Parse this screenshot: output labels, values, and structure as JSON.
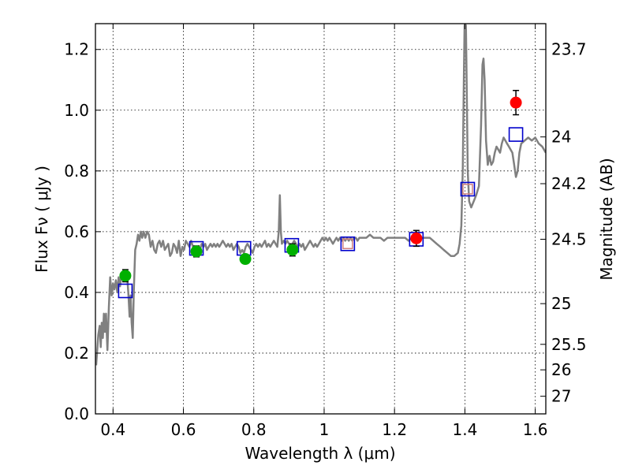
{
  "chart_data": {
    "type": "line",
    "xlabel": "Wavelength  λ (μm)",
    "ylabel": "Flux  Fν  ( μJy )",
    "y2label": "Magnitude (AB)",
    "xlim": [
      0.35,
      1.63
    ],
    "ylim": [
      0.0,
      1.285
    ],
    "grid": true,
    "x_ticks": [
      0.4,
      0.6,
      0.8,
      1.0,
      1.2,
      1.4,
      1.6
    ],
    "x_tick_labels": [
      "0.4",
      "0.6",
      "0.8",
      "1",
      "1.2",
      "1.4",
      "1.6"
    ],
    "y_ticks": [
      0.0,
      0.2,
      0.4,
      0.6,
      0.8,
      1.0,
      1.2
    ],
    "y_tick_labels": [
      "0.0",
      "0.2",
      "0.4",
      "0.6",
      "0.8",
      "1.0",
      "1.2"
    ],
    "y2_ticks": [
      {
        "label": "23.7",
        "flux": 1.2
      },
      {
        "label": "24",
        "flux": 0.912
      },
      {
        "label": "24.2",
        "flux": 0.758
      },
      {
        "label": "24.5",
        "flux": 0.575
      },
      {
        "label": "25",
        "flux": 0.363
      },
      {
        "label": "25.5",
        "flux": 0.229
      },
      {
        "label": "26",
        "flux": 0.145
      },
      {
        "label": "27",
        "flux": 0.058
      }
    ],
    "colors": {
      "spectrum": "#808080",
      "model_box": "#0000cc",
      "model_box_inner": "#d08080",
      "green_points": "#00b000",
      "red_points": "#ff0000",
      "errorbar": "#000000",
      "grid": "#000000"
    },
    "spectrum": [
      [
        0.352,
        0.16
      ],
      [
        0.358,
        0.26
      ],
      [
        0.362,
        0.29
      ],
      [
        0.365,
        0.22
      ],
      [
        0.368,
        0.3
      ],
      [
        0.371,
        0.25
      ],
      [
        0.374,
        0.33
      ],
      [
        0.377,
        0.27
      ],
      [
        0.38,
        0.33
      ],
      [
        0.384,
        0.21
      ],
      [
        0.388,
        0.35
      ],
      [
        0.392,
        0.45
      ],
      [
        0.396,
        0.39
      ],
      [
        0.4,
        0.43
      ],
      [
        0.404,
        0.41
      ],
      [
        0.408,
        0.44
      ],
      [
        0.412,
        0.4
      ],
      [
        0.416,
        0.45
      ],
      [
        0.42,
        0.42
      ],
      [
        0.424,
        0.46
      ],
      [
        0.428,
        0.44
      ],
      [
        0.432,
        0.47
      ],
      [
        0.436,
        0.45
      ],
      [
        0.44,
        0.46
      ],
      [
        0.444,
        0.39
      ],
      [
        0.447,
        0.32
      ],
      [
        0.45,
        0.39
      ],
      [
        0.453,
        0.3
      ],
      [
        0.456,
        0.25
      ],
      [
        0.459,
        0.4
      ],
      [
        0.463,
        0.54
      ],
      [
        0.467,
        0.56
      ],
      [
        0.471,
        0.59
      ],
      [
        0.475,
        0.57
      ],
      [
        0.479,
        0.6
      ],
      [
        0.483,
        0.58
      ],
      [
        0.487,
        0.6
      ],
      [
        0.492,
        0.58
      ],
      [
        0.497,
        0.6
      ],
      [
        0.502,
        0.59
      ],
      [
        0.507,
        0.55
      ],
      [
        0.512,
        0.57
      ],
      [
        0.517,
        0.54
      ],
      [
        0.522,
        0.53
      ],
      [
        0.527,
        0.56
      ],
      [
        0.532,
        0.57
      ],
      [
        0.537,
        0.55
      ],
      [
        0.542,
        0.57
      ],
      [
        0.547,
        0.54
      ],
      [
        0.552,
        0.55
      ],
      [
        0.557,
        0.56
      ],
      [
        0.562,
        0.52
      ],
      [
        0.567,
        0.53
      ],
      [
        0.572,
        0.56
      ],
      [
        0.577,
        0.55
      ],
      [
        0.582,
        0.53
      ],
      [
        0.587,
        0.57
      ],
      [
        0.592,
        0.52
      ],
      [
        0.597,
        0.55
      ],
      [
        0.602,
        0.54
      ],
      [
        0.607,
        0.57
      ],
      [
        0.612,
        0.56
      ],
      [
        0.617,
        0.55
      ],
      [
        0.622,
        0.57
      ],
      [
        0.627,
        0.55
      ],
      [
        0.632,
        0.54
      ],
      [
        0.637,
        0.53
      ],
      [
        0.642,
        0.55
      ],
      [
        0.647,
        0.54
      ],
      [
        0.652,
        0.56
      ],
      [
        0.657,
        0.55
      ],
      [
        0.662,
        0.56
      ],
      [
        0.667,
        0.54
      ],
      [
        0.672,
        0.55
      ],
      [
        0.677,
        0.56
      ],
      [
        0.682,
        0.55
      ],
      [
        0.687,
        0.56
      ],
      [
        0.692,
        0.55
      ],
      [
        0.697,
        0.56
      ],
      [
        0.702,
        0.55
      ],
      [
        0.707,
        0.56
      ],
      [
        0.712,
        0.57
      ],
      [
        0.717,
        0.56
      ],
      [
        0.722,
        0.55
      ],
      [
        0.727,
        0.56
      ],
      [
        0.732,
        0.55
      ],
      [
        0.737,
        0.56
      ],
      [
        0.742,
        0.54
      ],
      [
        0.747,
        0.55
      ],
      [
        0.752,
        0.56
      ],
      [
        0.757,
        0.55
      ],
      [
        0.762,
        0.53
      ],
      [
        0.767,
        0.54
      ],
      [
        0.772,
        0.53
      ],
      [
        0.777,
        0.55
      ],
      [
        0.782,
        0.56
      ],
      [
        0.787,
        0.55
      ],
      [
        0.792,
        0.54
      ],
      [
        0.797,
        0.53
      ],
      [
        0.802,
        0.55
      ],
      [
        0.807,
        0.56
      ],
      [
        0.812,
        0.55
      ],
      [
        0.817,
        0.56
      ],
      [
        0.822,
        0.55
      ],
      [
        0.827,
        0.56
      ],
      [
        0.832,
        0.57
      ],
      [
        0.837,
        0.55
      ],
      [
        0.842,
        0.56
      ],
      [
        0.847,
        0.55
      ],
      [
        0.852,
        0.56
      ],
      [
        0.857,
        0.57
      ],
      [
        0.862,
        0.56
      ],
      [
        0.867,
        0.55
      ],
      [
        0.871,
        0.6
      ],
      [
        0.874,
        0.72
      ],
      [
        0.877,
        0.6
      ],
      [
        0.88,
        0.56
      ],
      [
        0.885,
        0.57
      ],
      [
        0.89,
        0.56
      ],
      [
        0.895,
        0.57
      ],
      [
        0.9,
        0.56
      ],
      [
        0.905,
        0.55
      ],
      [
        0.91,
        0.56
      ],
      [
        0.915,
        0.57
      ],
      [
        0.92,
        0.56
      ],
      [
        0.925,
        0.55
      ],
      [
        0.93,
        0.56
      ],
      [
        0.935,
        0.55
      ],
      [
        0.94,
        0.56
      ],
      [
        0.945,
        0.54
      ],
      [
        0.95,
        0.55
      ],
      [
        0.955,
        0.56
      ],
      [
        0.96,
        0.57
      ],
      [
        0.965,
        0.56
      ],
      [
        0.97,
        0.55
      ],
      [
        0.975,
        0.56
      ],
      [
        0.98,
        0.55
      ],
      [
        0.985,
        0.56
      ],
      [
        0.99,
        0.57
      ],
      [
        0.995,
        0.58
      ],
      [
        1.0,
        0.57
      ],
      [
        1.005,
        0.58
      ],
      [
        1.01,
        0.57
      ],
      [
        1.015,
        0.58
      ],
      [
        1.02,
        0.57
      ],
      [
        1.025,
        0.56
      ],
      [
        1.03,
        0.57
      ],
      [
        1.035,
        0.58
      ],
      [
        1.04,
        0.57
      ],
      [
        1.045,
        0.58
      ],
      [
        1.05,
        0.57
      ],
      [
        1.055,
        0.58
      ],
      [
        1.06,
        0.57
      ],
      [
        1.065,
        0.58
      ],
      [
        1.07,
        0.57
      ],
      [
        1.075,
        0.58
      ],
      [
        1.08,
        0.57
      ],
      [
        1.085,
        0.58
      ],
      [
        1.09,
        0.58
      ],
      [
        1.095,
        0.57
      ],
      [
        1.1,
        0.58
      ],
      [
        1.11,
        0.58
      ],
      [
        1.12,
        0.58
      ],
      [
        1.13,
        0.59
      ],
      [
        1.14,
        0.58
      ],
      [
        1.15,
        0.58
      ],
      [
        1.16,
        0.58
      ],
      [
        1.17,
        0.57
      ],
      [
        1.18,
        0.58
      ],
      [
        1.19,
        0.58
      ],
      [
        1.2,
        0.58
      ],
      [
        1.21,
        0.58
      ],
      [
        1.22,
        0.58
      ],
      [
        1.23,
        0.58
      ],
      [
        1.24,
        0.57
      ],
      [
        1.25,
        0.58
      ],
      [
        1.26,
        0.58
      ],
      [
        1.27,
        0.58
      ],
      [
        1.28,
        0.58
      ],
      [
        1.29,
        0.58
      ],
      [
        1.3,
        0.58
      ],
      [
        1.31,
        0.57
      ],
      [
        1.32,
        0.56
      ],
      [
        1.33,
        0.55
      ],
      [
        1.34,
        0.54
      ],
      [
        1.35,
        0.53
      ],
      [
        1.36,
        0.52
      ],
      [
        1.37,
        0.52
      ],
      [
        1.38,
        0.53
      ],
      [
        1.385,
        0.56
      ],
      [
        1.39,
        0.62
      ],
      [
        1.394,
        0.8
      ],
      [
        1.397,
        1.1
      ],
      [
        1.399,
        1.28
      ],
      [
        1.401,
        1.28
      ],
      [
        1.403,
        1.28
      ],
      [
        1.405,
        1.1
      ],
      [
        1.408,
        0.8
      ],
      [
        1.412,
        0.7
      ],
      [
        1.418,
        0.68
      ],
      [
        1.425,
        0.7
      ],
      [
        1.432,
        0.72
      ],
      [
        1.44,
        0.75
      ],
      [
        1.446,
        0.95
      ],
      [
        1.45,
        1.15
      ],
      [
        1.453,
        1.17
      ],
      [
        1.456,
        1.1
      ],
      [
        1.46,
        0.9
      ],
      [
        1.465,
        0.82
      ],
      [
        1.47,
        0.85
      ],
      [
        1.475,
        0.82
      ],
      [
        1.48,
        0.83
      ],
      [
        1.485,
        0.86
      ],
      [
        1.49,
        0.88
      ],
      [
        1.495,
        0.87
      ],
      [
        1.5,
        0.86
      ],
      [
        1.505,
        0.89
      ],
      [
        1.51,
        0.91
      ],
      [
        1.515,
        0.9
      ],
      [
        1.52,
        0.89
      ],
      [
        1.525,
        0.88
      ],
      [
        1.53,
        0.87
      ],
      [
        1.535,
        0.86
      ],
      [
        1.54,
        0.82
      ],
      [
        1.545,
        0.78
      ],
      [
        1.55,
        0.8
      ],
      [
        1.555,
        0.86
      ],
      [
        1.56,
        0.89
      ],
      [
        1.57,
        0.9
      ],
      [
        1.58,
        0.91
      ],
      [
        1.59,
        0.9
      ],
      [
        1.6,
        0.91
      ],
      [
        1.61,
        0.89
      ],
      [
        1.62,
        0.88
      ],
      [
        1.63,
        0.86
      ]
    ],
    "model_boxes": [
      {
        "x": 0.435,
        "y": 0.405,
        "inner": false
      },
      {
        "x": 0.637,
        "y": 0.545,
        "inner": false
      },
      {
        "x": 0.772,
        "y": 0.545,
        "inner": false
      },
      {
        "x": 0.908,
        "y": 0.555,
        "inner": false
      },
      {
        "x": 1.067,
        "y": 0.56,
        "inner": true
      },
      {
        "x": 1.262,
        "y": 0.575,
        "inner": false
      },
      {
        "x": 1.408,
        "y": 0.74,
        "inner": true
      },
      {
        "x": 1.545,
        "y": 0.92,
        "inner": false
      }
    ],
    "green_points": [
      {
        "x": 0.435,
        "y": 0.455,
        "err": 0.02
      },
      {
        "x": 0.637,
        "y": 0.535,
        "err": 0.018
      },
      {
        "x": 0.776,
        "y": 0.51,
        "err": 0.014
      },
      {
        "x": 0.91,
        "y": 0.54,
        "err": 0.02
      }
    ],
    "red_points": [
      {
        "x": 1.262,
        "y": 0.578,
        "err": 0.026
      },
      {
        "x": 1.545,
        "y": 1.025,
        "err": 0.04
      }
    ]
  }
}
